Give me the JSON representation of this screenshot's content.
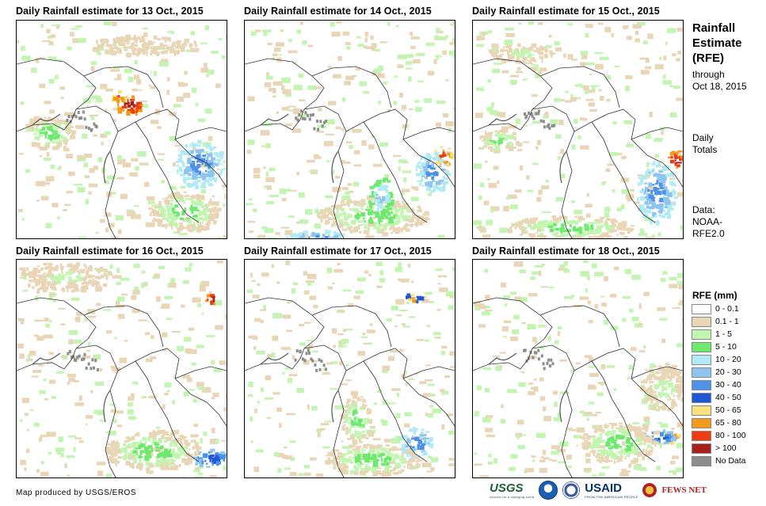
{
  "panels": [
    {
      "title": "Daily Rainfall estimate for 13 Oct., 2015"
    },
    {
      "title": "Daily Rainfall estimate for 14 Oct., 2015"
    },
    {
      "title": "Daily Rainfall estimate for 15 Oct., 2015"
    },
    {
      "title": "Daily Rainfall estimate for 16 Oct., 2015"
    },
    {
      "title": "Daily Rainfall estimate for 17 Oct., 2015"
    },
    {
      "title": "Daily Rainfall estimate for 18 Oct., 2015"
    }
  ],
  "sidebar": {
    "title_lines": [
      "Rainfall",
      "Estimate",
      "(RFE)"
    ],
    "through_lines": [
      "through",
      "Oct 18, 2015"
    ],
    "totals_lines": [
      "Daily",
      "Totals"
    ],
    "data_lines": [
      "Data:",
      "NOAA-",
      "RFE2.0"
    ]
  },
  "legend": {
    "title": "RFE (mm)",
    "items": [
      {
        "label": "0 - 0.1",
        "color": "#ffffff"
      },
      {
        "label": "0.1 - 1",
        "color": "#e8d6b6"
      },
      {
        "label": "1 - 5",
        "color": "#c2f5b0"
      },
      {
        "label": "5 - 10",
        "color": "#6ee96e"
      },
      {
        "label": "10 - 20",
        "color": "#b0eaf5"
      },
      {
        "label": "20 - 30",
        "color": "#8ec4f0"
      },
      {
        "label": "30 - 40",
        "color": "#4e92e8"
      },
      {
        "label": "40 - 50",
        "color": "#1e58d8"
      },
      {
        "label": "50 - 65",
        "color": "#f9e27e"
      },
      {
        "label": "65 - 80",
        "color": "#f29a1a"
      },
      {
        "label": "80 - 100",
        "color": "#f03c12"
      },
      {
        "label": "> 100",
        "color": "#a8201a"
      },
      {
        "label": "No Data",
        "color": "#8c8c8c"
      }
    ]
  },
  "footer": {
    "credit": "Map produced by USGS/EROS"
  },
  "logos": {
    "usgs": "USGS",
    "usgs_tagline": "science for a changing world",
    "usaid": "USAID",
    "usaid_tagline": "FROM THE AMERICAN PEOPLE",
    "fews": "FEWS NET"
  }
}
